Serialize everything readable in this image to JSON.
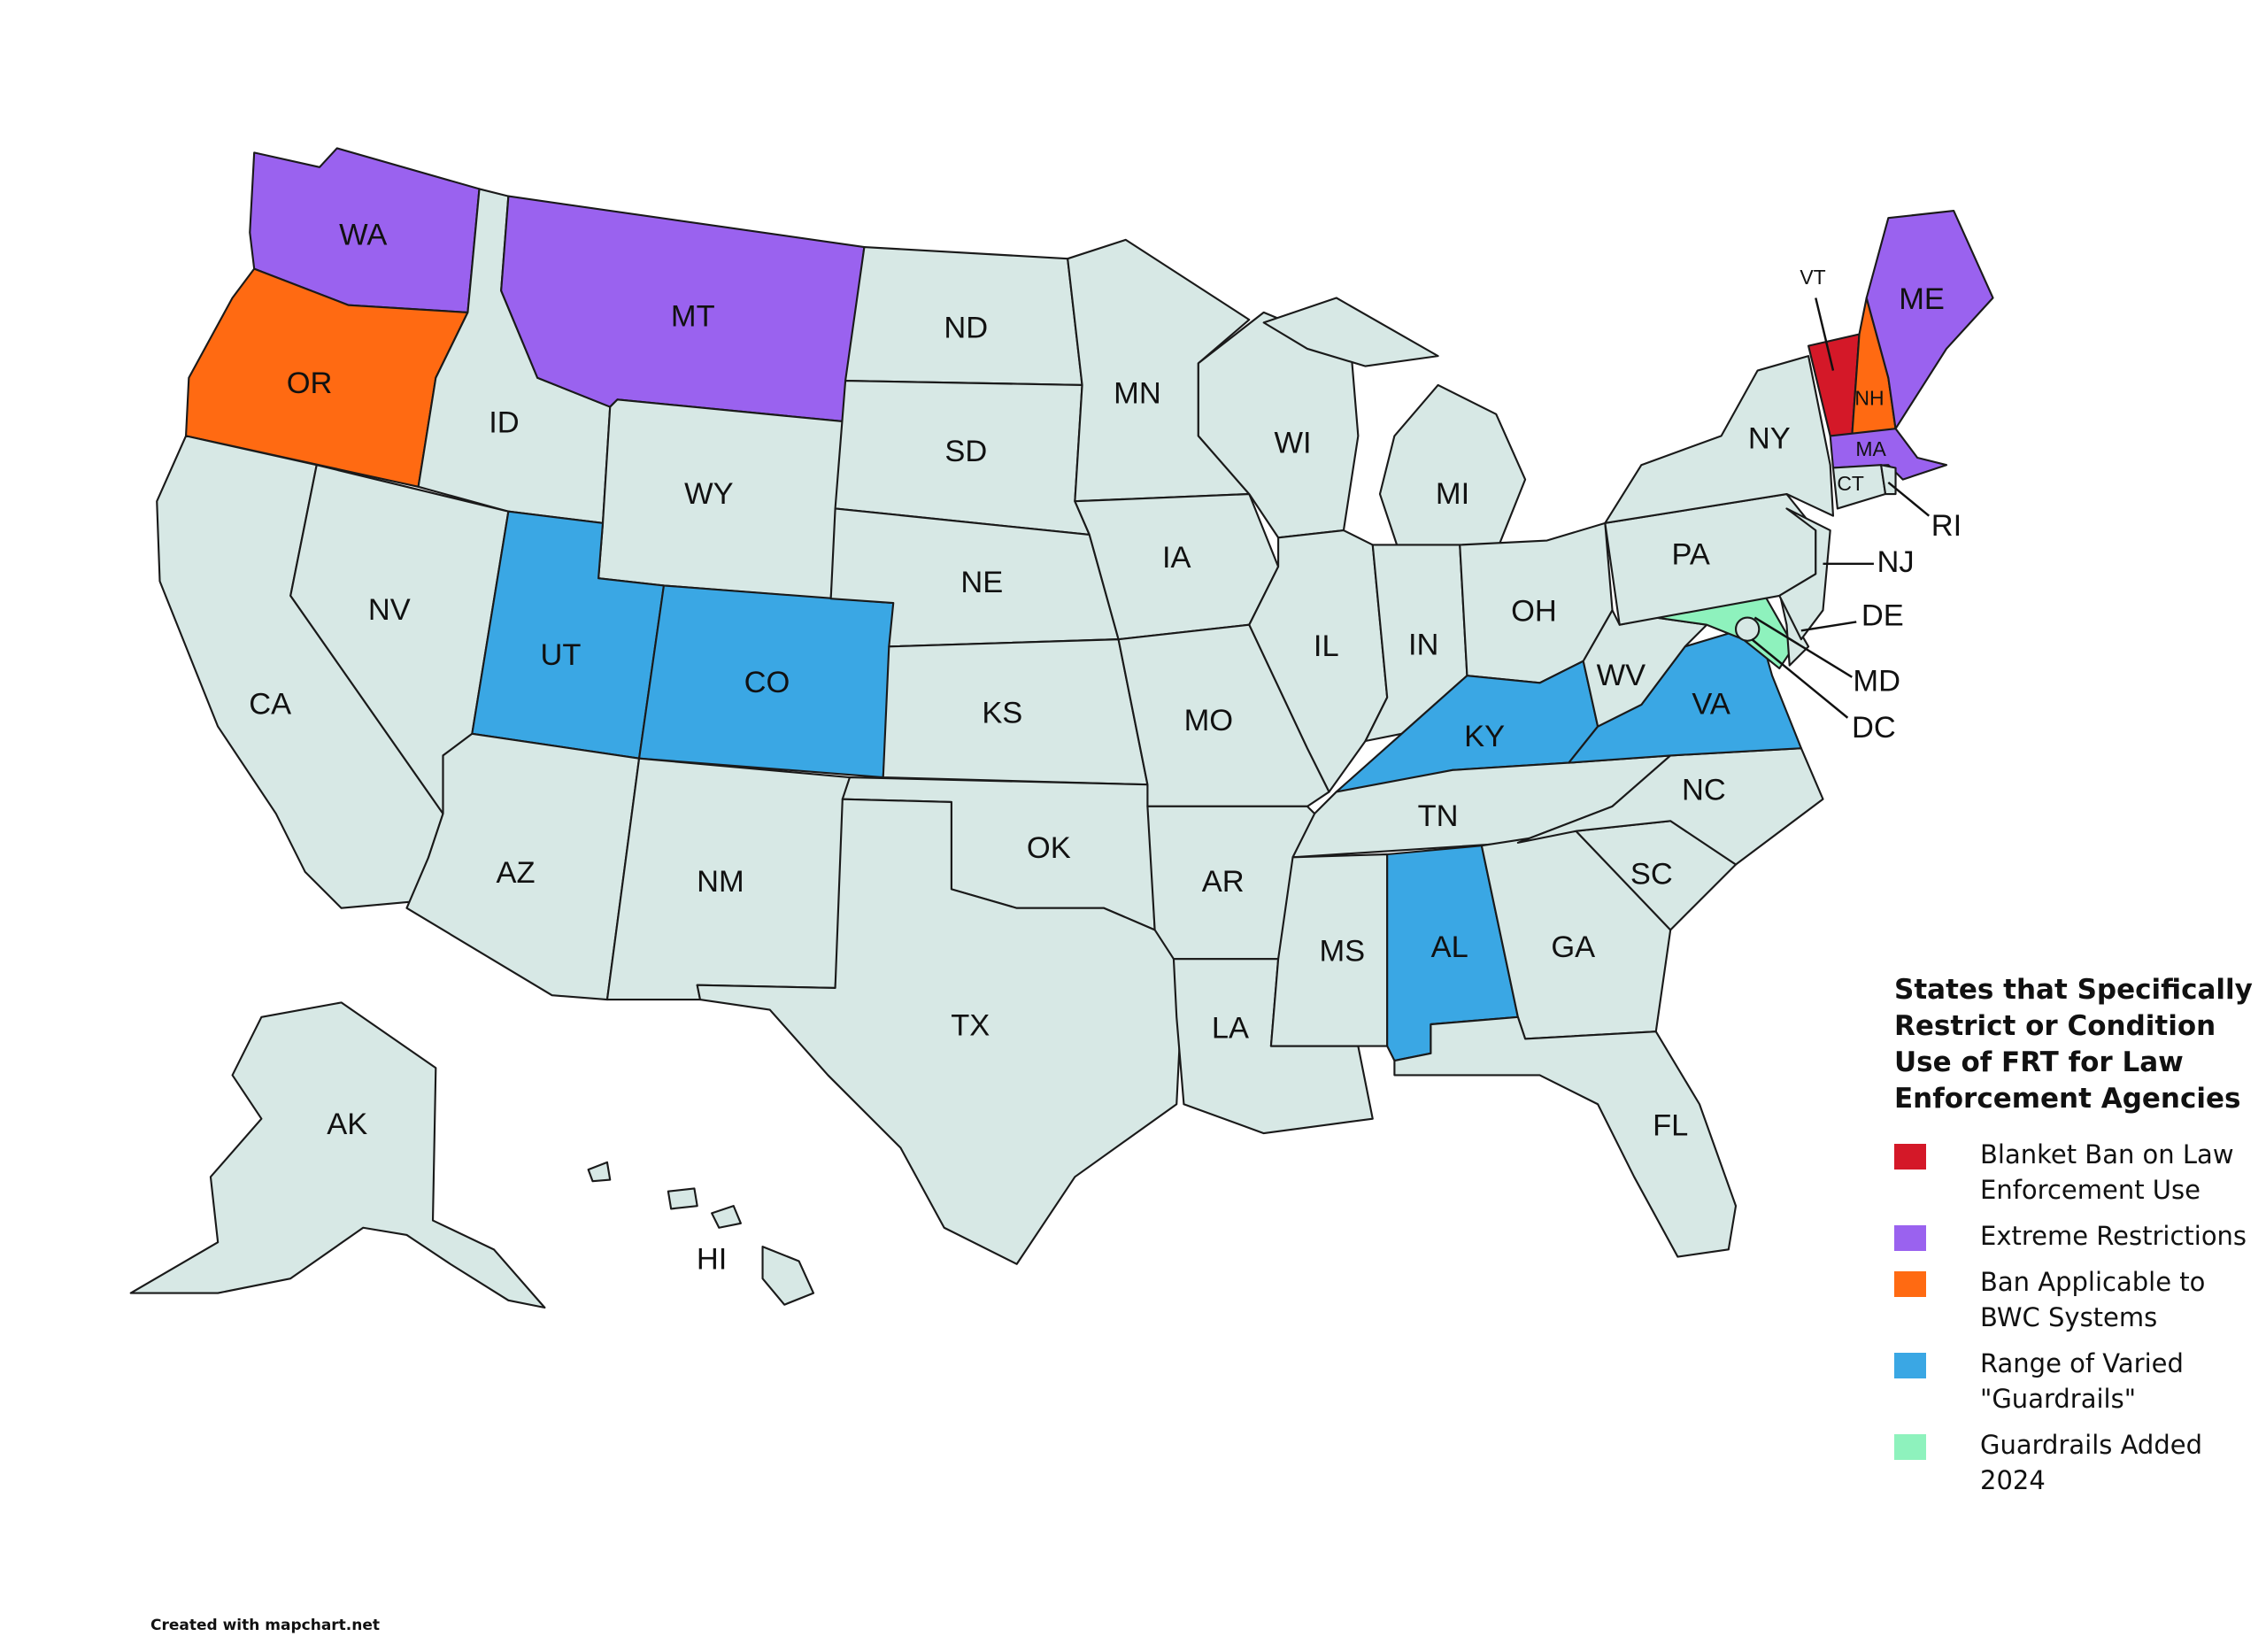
{
  "colors": {
    "default": "#d7e8e5",
    "ban": "#d41828",
    "extreme": "#9a62ef",
    "bwc": "#ff6a12",
    "guardrails": "#3aa7e4",
    "added2024": "#8ef2bd"
  },
  "states": [
    {
      "abbr": "WA",
      "category": "extreme"
    },
    {
      "abbr": "OR",
      "category": "bwc"
    },
    {
      "abbr": "CA",
      "category": "default"
    },
    {
      "abbr": "ID",
      "category": "default"
    },
    {
      "abbr": "NV",
      "category": "default"
    },
    {
      "abbr": "MT",
      "category": "extreme"
    },
    {
      "abbr": "WY",
      "category": "default"
    },
    {
      "abbr": "UT",
      "category": "guardrails"
    },
    {
      "abbr": "CO",
      "category": "guardrails"
    },
    {
      "abbr": "AZ",
      "category": "default"
    },
    {
      "abbr": "NM",
      "category": "default"
    },
    {
      "abbr": "ND",
      "category": "default"
    },
    {
      "abbr": "SD",
      "category": "default"
    },
    {
      "abbr": "NE",
      "category": "default"
    },
    {
      "abbr": "KS",
      "category": "default"
    },
    {
      "abbr": "OK",
      "category": "default"
    },
    {
      "abbr": "TX",
      "category": "default"
    },
    {
      "abbr": "MN",
      "category": "default"
    },
    {
      "abbr": "IA",
      "category": "default"
    },
    {
      "abbr": "MO",
      "category": "default"
    },
    {
      "abbr": "AR",
      "category": "default"
    },
    {
      "abbr": "LA",
      "category": "default"
    },
    {
      "abbr": "WI",
      "category": "default"
    },
    {
      "abbr": "IL",
      "category": "default"
    },
    {
      "abbr": "MI",
      "category": "default"
    },
    {
      "abbr": "IN",
      "category": "default"
    },
    {
      "abbr": "OH",
      "category": "default"
    },
    {
      "abbr": "KY",
      "category": "guardrails"
    },
    {
      "abbr": "TN",
      "category": "default"
    },
    {
      "abbr": "MS",
      "category": "default"
    },
    {
      "abbr": "AL",
      "category": "guardrails"
    },
    {
      "abbr": "GA",
      "category": "default"
    },
    {
      "abbr": "FL",
      "category": "default"
    },
    {
      "abbr": "SC",
      "category": "default"
    },
    {
      "abbr": "NC",
      "category": "default"
    },
    {
      "abbr": "VA",
      "category": "guardrails"
    },
    {
      "abbr": "WV",
      "category": "default"
    },
    {
      "abbr": "MD",
      "category": "added2024"
    },
    {
      "abbr": "DE",
      "category": "default"
    },
    {
      "abbr": "PA",
      "category": "default"
    },
    {
      "abbr": "NJ",
      "category": "default"
    },
    {
      "abbr": "NY",
      "category": "default"
    },
    {
      "abbr": "VT",
      "category": "ban"
    },
    {
      "abbr": "NH",
      "category": "bwc"
    },
    {
      "abbr": "ME",
      "category": "extreme"
    },
    {
      "abbr": "MA",
      "category": "extreme"
    },
    {
      "abbr": "CT",
      "category": "default"
    },
    {
      "abbr": "RI",
      "category": "default"
    },
    {
      "abbr": "DC",
      "category": "default"
    },
    {
      "abbr": "AK",
      "category": "default"
    },
    {
      "abbr": "HI",
      "category": "default"
    }
  ],
  "legend": {
    "title": "States that Specifically Restrict or Condition Use of FRT for Law Enforcement Agencies",
    "items": [
      {
        "category": "ban",
        "label": "Blanket Ban on Law Enforcement Use"
      },
      {
        "category": "extreme",
        "label": "Extreme Restrictions"
      },
      {
        "category": "bwc",
        "label": "Ban Applicable to BWC Systems"
      },
      {
        "category": "guardrails",
        "label": "Range of Varied \"Guardrails\""
      },
      {
        "category": "added2024",
        "label": "Guardrails Added 2024"
      }
    ]
  },
  "footer": "Created with mapchart.net"
}
